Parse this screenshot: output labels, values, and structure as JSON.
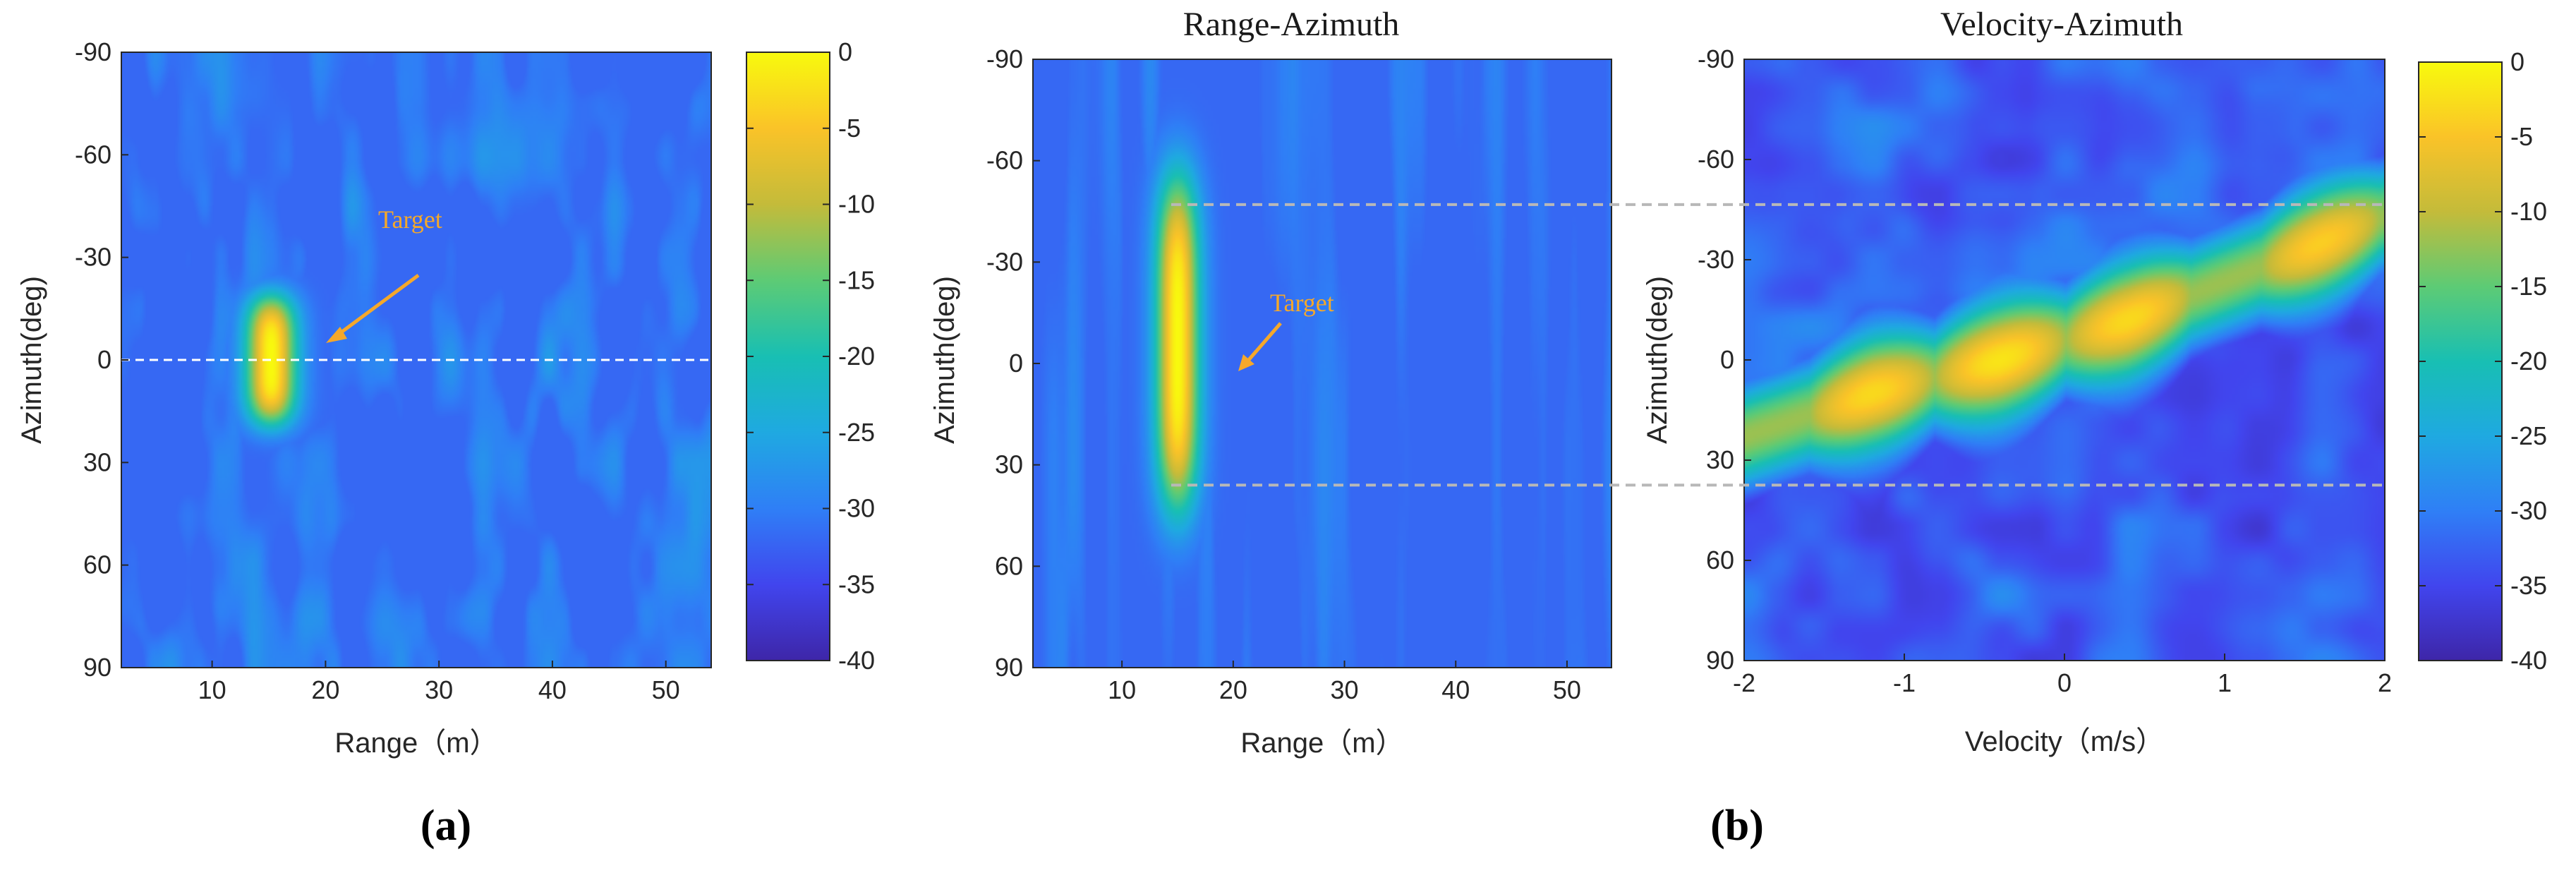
{
  "figure": {
    "panel_labels": [
      "(a)",
      "(b)"
    ]
  },
  "colors": {
    "colormap": [
      "#3e26a8",
      "#4145ee",
      "#2f7ff6",
      "#1fa9e1",
      "#18bfb3",
      "#5dcb75",
      "#c4bb3a",
      "#fac328",
      "#f8fa0d"
    ],
    "dashed_line": "#ffffff",
    "dashed_link": "#b8b8b8",
    "annotation": "#f5a82a"
  },
  "chart_data": [
    {
      "id": "a",
      "type": "heatmap",
      "title": "",
      "xlabel": "Range（m）",
      "ylabel": "Azimuth(deg)",
      "xlim": [
        2,
        54
      ],
      "ylim": [
        -90,
        90
      ],
      "y_reversed": true,
      "xticks": [
        10,
        20,
        30,
        40,
        50
      ],
      "yticks": [
        -90,
        -60,
        -30,
        0,
        30,
        60,
        90
      ],
      "zlim": [
        -40,
        0
      ],
      "colorbar_ticks": [
        0,
        -5,
        -10,
        -15,
        -20,
        -25,
        -30,
        -35,
        -40
      ],
      "hotspots": [
        {
          "x": 15.2,
          "y": 0,
          "sx": 1.6,
          "sy": 16,
          "peak": 0
        }
      ],
      "reference_lines": [
        {
          "axis": "y",
          "value": 0,
          "style": "dashed"
        }
      ],
      "annotation": {
        "text": "Target",
        "at": [
          18.5,
          5
        ],
        "from": [
          28,
          -27
        ]
      }
    },
    {
      "id": "b1",
      "type": "heatmap",
      "title": "Range-Azimuth",
      "xlabel": "Range（m）",
      "ylabel": "Azimuth(deg)",
      "xlim": [
        2,
        54
      ],
      "ylim": [
        -90,
        90
      ],
      "y_reversed": true,
      "xticks": [
        10,
        20,
        30,
        40,
        50
      ],
      "yticks": [
        -90,
        -60,
        -30,
        0,
        30,
        60,
        90
      ],
      "zlim": [
        -40,
        0
      ],
      "hotspots": [
        {
          "x": 15,
          "y": -6,
          "sx": 1.4,
          "sy": 42,
          "peak": 0
        }
      ],
      "reference_lines": [
        {
          "axis": "y",
          "value": -47,
          "style": "dashed"
        },
        {
          "axis": "y",
          "value": 36,
          "style": "dashed"
        }
      ],
      "annotation": {
        "text": "Target",
        "at": [
          18.5,
          2
        ],
        "from": [
          22,
          -12
        ]
      }
    },
    {
      "id": "b2",
      "type": "heatmap",
      "title": "Velocity-Azimuth",
      "xlabel": "Velocity（m/s）",
      "ylabel": "Azimuth(deg)",
      "xlim": [
        -2,
        2
      ],
      "ylim": [
        -90,
        90
      ],
      "y_reversed": true,
      "xticks": [
        -2,
        -1,
        0,
        1,
        2
      ],
      "yticks": [
        -90,
        -60,
        -30,
        0,
        30,
        60,
        90
      ],
      "zlim": [
        -40,
        0
      ],
      "colorbar_ticks": [
        0,
        -5,
        -10,
        -15,
        -20,
        -25,
        -30,
        -35,
        -40
      ],
      "ridge": [
        [
          -2.0,
          23
        ],
        [
          -1.2,
          10
        ],
        [
          -0.4,
          0
        ],
        [
          0.4,
          -12
        ],
        [
          1.6,
          -35
        ],
        [
          2.0,
          -43
        ]
      ],
      "hotspots": [
        {
          "x": -1.2,
          "y": 10,
          "peak": -3
        },
        {
          "x": -0.4,
          "y": 0,
          "peak": -2
        },
        {
          "x": 0.4,
          "y": -12,
          "peak": -3
        },
        {
          "x": 1.6,
          "y": -35,
          "peak": -4
        }
      ],
      "reference_lines": [
        {
          "axis": "y",
          "value": -47,
          "style": "dashed"
        },
        {
          "axis": "y",
          "value": 36,
          "style": "dashed"
        }
      ]
    }
  ]
}
